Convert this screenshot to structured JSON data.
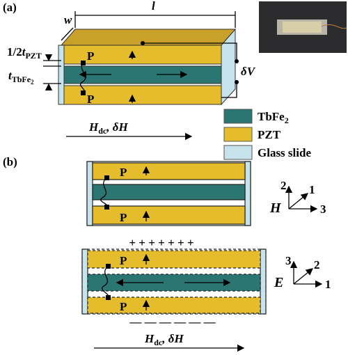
{
  "panel_a": {
    "label": "(a)",
    "width_label": "w",
    "length_label": "l",
    "pzt_thickness": {
      "prefix": "1/2",
      "symbol": "t",
      "subscript": "PZT"
    },
    "tbfe_thickness": {
      "symbol": "t",
      "subscript": "TbFe",
      "subscript_index": "2"
    },
    "polarization_top": "P",
    "polarization_bottom": "P",
    "voltage": "δV",
    "field": {
      "symbol": "H",
      "subscript": "dc",
      "rest": ", δH"
    }
  },
  "legend": [
    {
      "label": "TbFe",
      "index": "2",
      "color": "#2b7672"
    },
    {
      "label": "PZT",
      "color": "#e5bd2c"
    },
    {
      "label": "Glass slide",
      "color": "#c7e4ec"
    }
  ],
  "panel_b": {
    "label": "(b)",
    "top": {
      "polarization_top": "P",
      "polarization_bottom": "P",
      "field_symbol": "H",
      "axis_up": "2",
      "axis_diag": "1",
      "axis_right": "3"
    },
    "bottom": {
      "polarization_top": "P",
      "polarization_bottom": "P",
      "plus_charges": "+ + + + + + +",
      "minus_charges": "— — — — — —",
      "field_symbol": "E",
      "axis_up": "3",
      "axis_diag": "2",
      "axis_right": "1"
    },
    "field": {
      "symbol": "H",
      "subscript": "dc",
      "rest": ", δH"
    }
  }
}
